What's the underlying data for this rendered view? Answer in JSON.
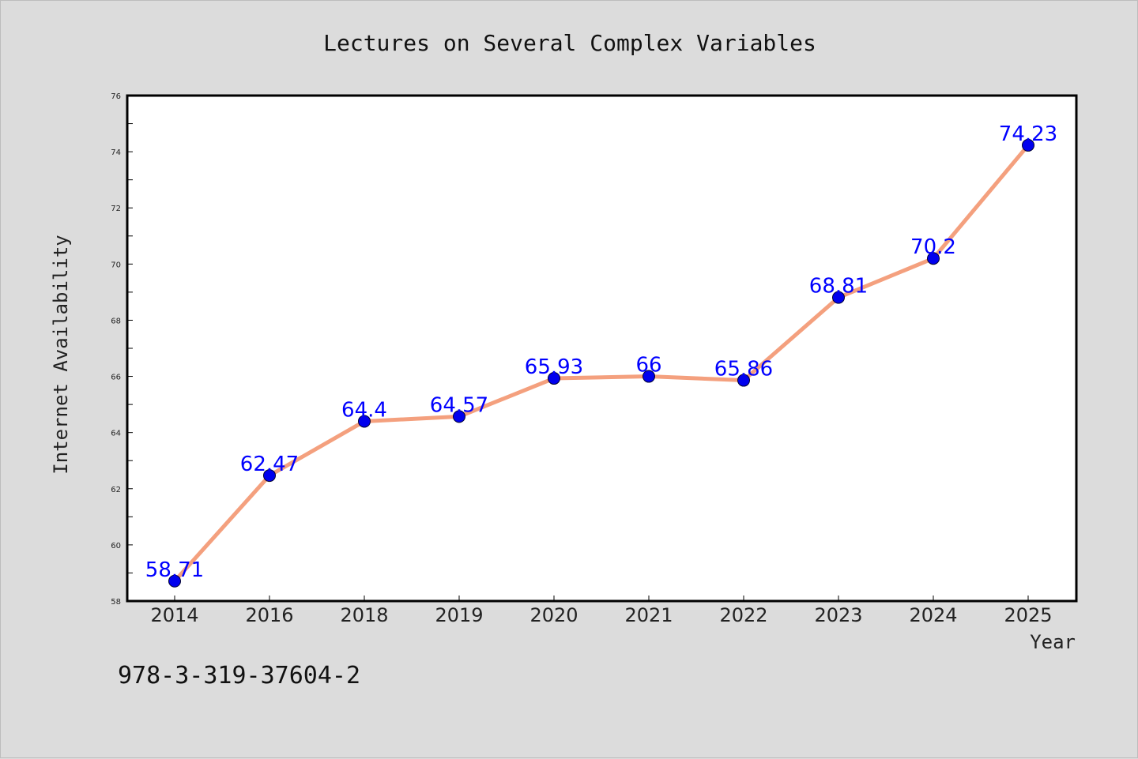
{
  "chart_data": {
    "type": "line",
    "title": "Lectures on Several Complex Variables",
    "xlabel": "Year",
    "ylabel": "Internet Availability",
    "categories": [
      "2014",
      "2016",
      "2018",
      "2019",
      "2020",
      "2021",
      "2022",
      "2023",
      "2024",
      "2025"
    ],
    "series": [
      {
        "values": [
          58.71,
          62.47,
          64.4,
          64.57,
          65.93,
          66,
          65.86,
          68.81,
          70.2,
          74.23
        ]
      }
    ],
    "data_labels": [
      "58.71",
      "62.47",
      "64.4",
      "64.57",
      "65.93",
      "66",
      "65.86",
      "68.81",
      "70.2",
      "74.23"
    ],
    "ylim": [
      58,
      76
    ],
    "yticks": [
      58,
      60,
      62,
      64,
      66,
      68,
      70,
      72,
      74,
      76
    ],
    "grid": false,
    "legend": "none"
  },
  "footer": {
    "isbn": "978-3-319-37604-2"
  },
  "colors": {
    "background": "#dcdcdc",
    "plot_area": "#ffffff",
    "line": "#f4a07e",
    "marker": "#0000ee",
    "data_label": "#0000ff"
  }
}
